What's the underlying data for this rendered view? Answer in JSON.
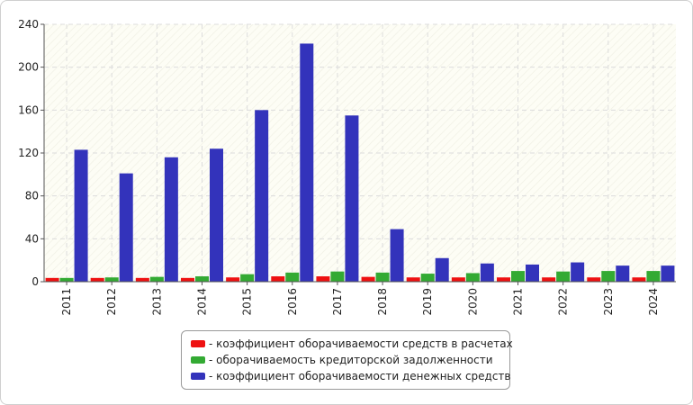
{
  "chart_data": {
    "type": "bar",
    "categories": [
      "2011",
      "2012",
      "2013",
      "2014",
      "2015",
      "2016",
      "2017",
      "2018",
      "2019",
      "2020",
      "2021",
      "2022",
      "2023",
      "2024"
    ],
    "series": [
      {
        "name": "- коэффициент оборачиваемости средств в расчетах",
        "color": "#ee1111",
        "values": [
          3.5,
          3.5,
          3.5,
          3.5,
          4,
          5,
          5,
          4.5,
          4,
          4,
          4,
          4,
          4,
          4
        ]
      },
      {
        "name": "- оборачиваемость кредиторской задолженности",
        "color": "#33aa33",
        "values": [
          3.5,
          4,
          4.5,
          5,
          7,
          8.5,
          9.5,
          8.5,
          7.5,
          8,
          10,
          9.5,
          10,
          10
        ]
      },
      {
        "name": "- коэффициент оборачиваемости денежных средств",
        "color": "#3333bb",
        "values": [
          123,
          101,
          116,
          124,
          160,
          222,
          155,
          49,
          22,
          17,
          16,
          18,
          15,
          15
        ]
      }
    ],
    "ylim": [
      0,
      240
    ],
    "yticks": [
      0,
      40,
      80,
      120,
      160,
      200,
      240
    ],
    "grid": true,
    "legend_position": "bottom-center"
  }
}
